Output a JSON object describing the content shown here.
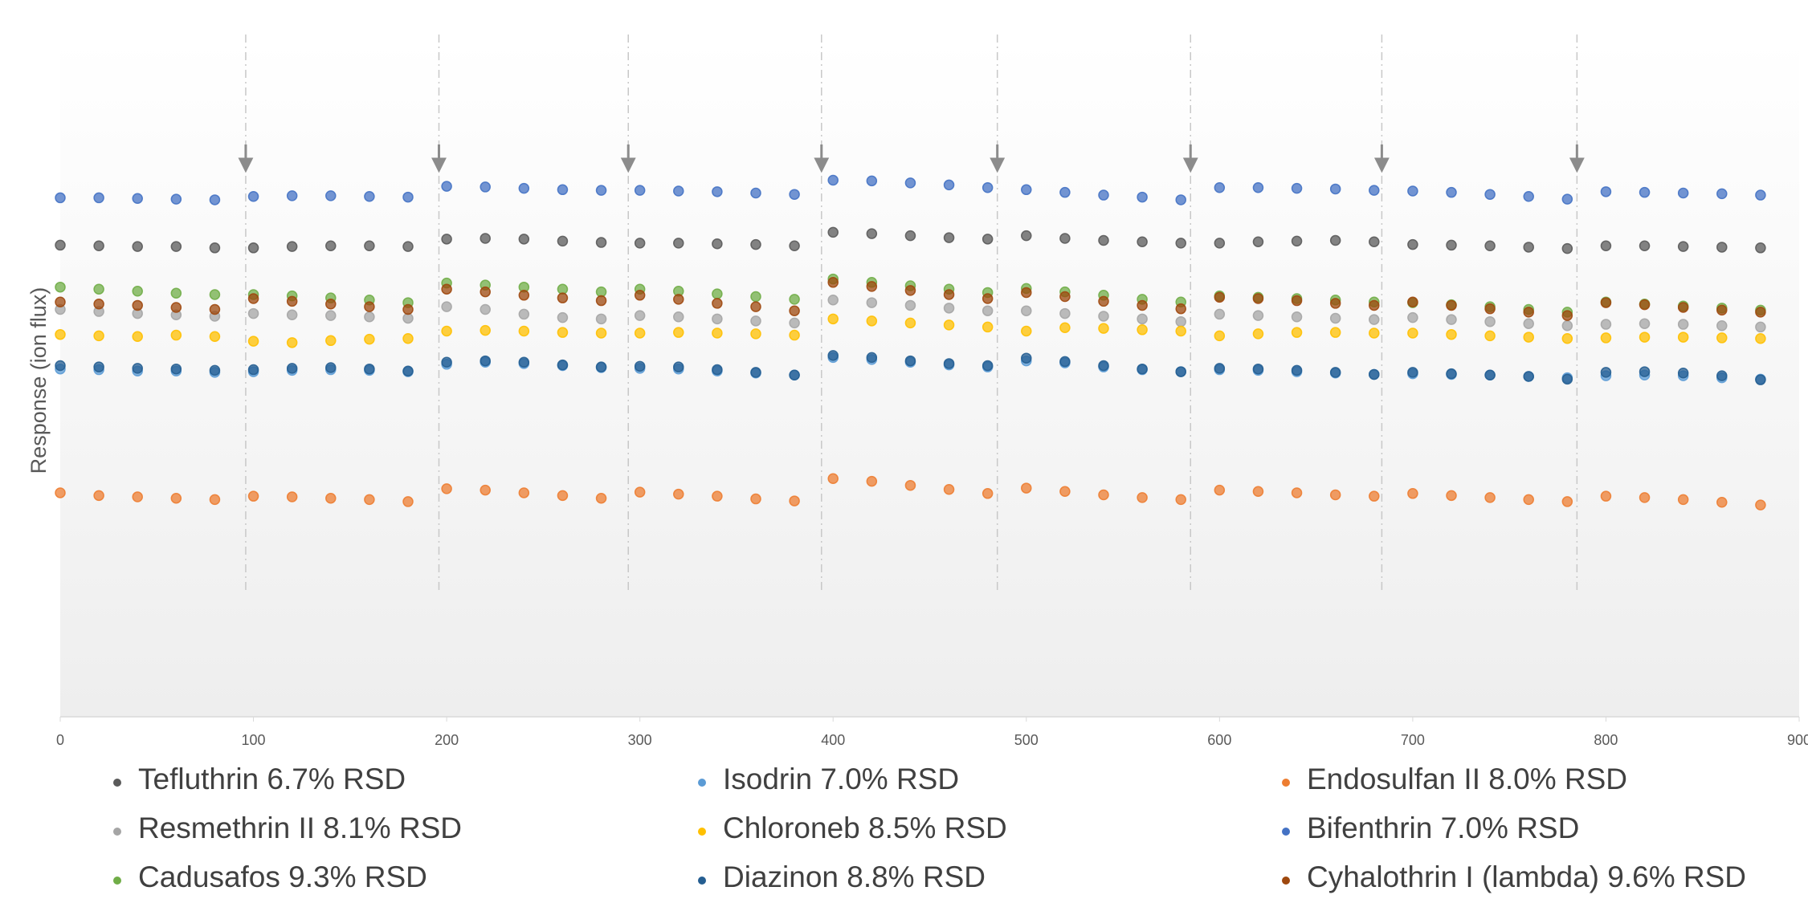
{
  "chart_data": {
    "type": "scatter",
    "y_label": "Response  (ion flux)",
    "xlim": [
      0,
      900
    ],
    "xticks": [
      0,
      100,
      200,
      300,
      400,
      500,
      600,
      700,
      800,
      900
    ],
    "ylim": [
      0,
      100
    ],
    "markers": [
      96,
      196,
      294,
      394,
      485,
      585,
      684,
      785
    ],
    "x": [
      0,
      20,
      40,
      60,
      80,
      100,
      120,
      140,
      160,
      180,
      200,
      220,
      240,
      260,
      280,
      300,
      320,
      340,
      360,
      380,
      400,
      420,
      440,
      460,
      480,
      500,
      520,
      540,
      560,
      580,
      600,
      620,
      640,
      660,
      680,
      700,
      720,
      740,
      760,
      780,
      800,
      820,
      840,
      860,
      880
    ],
    "series": [
      {
        "name": "Tefluthrin 6.7% RSD",
        "color": "#5a5a5a",
        "values": [
          69.7,
          69.6,
          69.5,
          69.5,
          69.3,
          69.3,
          69.5,
          69.6,
          69.6,
          69.5,
          70.6,
          70.7,
          70.6,
          70.3,
          70.1,
          70.0,
          70.0,
          69.9,
          69.8,
          69.6,
          71.6,
          71.4,
          71.1,
          70.8,
          70.6,
          71.1,
          70.7,
          70.4,
          70.2,
          70.0,
          70.0,
          70.2,
          70.3,
          70.4,
          70.2,
          69.8,
          69.7,
          69.6,
          69.4,
          69.2,
          69.6,
          69.6,
          69.5,
          69.4,
          69.3
        ]
      },
      {
        "name": "Resmethrin II 8.1% RSD",
        "color": "#a5a5a5",
        "values": [
          60.2,
          59.9,
          59.6,
          59.4,
          59.2,
          59.6,
          59.4,
          59.3,
          59.1,
          58.9,
          60.6,
          60.2,
          59.5,
          59.0,
          58.8,
          59.3,
          59.1,
          58.8,
          58.5,
          58.2,
          61.6,
          61.2,
          60.8,
          60.4,
          60.0,
          60.0,
          59.6,
          59.2,
          58.8,
          58.4,
          59.5,
          59.3,
          59.1,
          58.9,
          58.7,
          59.0,
          58.7,
          58.4,
          58.1,
          57.8,
          58.0,
          58.1,
          58.0,
          57.8,
          57.6
        ]
      },
      {
        "name": "Cadusafos 9.3% RSD",
        "color": "#70ad47",
        "values": [
          63.5,
          63.2,
          62.9,
          62.6,
          62.4,
          62.4,
          62.2,
          61.9,
          61.6,
          61.2,
          64.1,
          63.8,
          63.5,
          63.2,
          62.8,
          63.2,
          62.9,
          62.5,
          62.1,
          61.7,
          64.7,
          64.2,
          63.7,
          63.2,
          62.7,
          63.3,
          62.8,
          62.3,
          61.7,
          61.3,
          62.2,
          62.0,
          61.8,
          61.6,
          61.3,
          61.2,
          60.9,
          60.6,
          60.2,
          59.8,
          61.3,
          61.0,
          60.7,
          60.4,
          60.1
        ]
      },
      {
        "name": "Isodrin 7.0% RSD",
        "color": "#5b9bd5",
        "values": [
          51.4,
          51.3,
          51.1,
          51.1,
          50.9,
          51.0,
          51.2,
          51.3,
          51.2,
          51.0,
          52.1,
          52.4,
          52.2,
          51.9,
          51.6,
          51.5,
          51.4,
          51.1,
          50.8,
          50.5,
          53.1,
          52.8,
          52.4,
          52.0,
          51.7,
          52.6,
          52.3,
          51.7,
          51.3,
          51.0,
          51.3,
          51.2,
          51.0,
          50.8,
          50.6,
          50.7,
          50.6,
          50.5,
          50.3,
          50.1,
          50.4,
          50.5,
          50.4,
          50.1,
          49.9
        ]
      },
      {
        "name": "Chloroneb 8.5% RSD",
        "color": "#ffc000",
        "values": [
          56.5,
          56.3,
          56.2,
          56.4,
          56.2,
          55.5,
          55.3,
          55.6,
          55.8,
          55.9,
          57.0,
          57.1,
          57.0,
          56.8,
          56.7,
          56.7,
          56.8,
          56.7,
          56.6,
          56.4,
          58.8,
          58.5,
          58.2,
          57.9,
          57.6,
          57.0,
          57.5,
          57.4,
          57.2,
          57.0,
          56.3,
          56.6,
          56.8,
          56.8,
          56.7,
          56.7,
          56.5,
          56.3,
          56.1,
          55.9,
          56.0,
          56.1,
          56.1,
          56.0,
          55.9
        ]
      },
      {
        "name": "Diazinon 8.8% RSD",
        "color": "#255e91",
        "values": [
          51.9,
          51.7,
          51.5,
          51.4,
          51.2,
          51.3,
          51.5,
          51.6,
          51.4,
          51.1,
          52.4,
          52.6,
          52.4,
          52.0,
          51.7,
          51.8,
          51.7,
          51.3,
          50.9,
          50.5,
          53.4,
          53.1,
          52.6,
          52.2,
          51.9,
          53.0,
          52.5,
          51.9,
          51.4,
          51.0,
          51.5,
          51.4,
          51.2,
          50.9,
          50.6,
          50.9,
          50.7,
          50.5,
          50.3,
          49.9,
          50.9,
          51.0,
          50.8,
          50.4,
          49.8
        ]
      },
      {
        "name": "Endosulfan II 8.0% RSD",
        "color": "#ed7d31",
        "values": [
          33.1,
          32.7,
          32.5,
          32.3,
          32.1,
          32.6,
          32.5,
          32.3,
          32.1,
          31.8,
          33.7,
          33.5,
          33.1,
          32.7,
          32.3,
          33.2,
          32.9,
          32.6,
          32.2,
          31.9,
          35.2,
          34.8,
          34.2,
          33.6,
          33.0,
          33.8,
          33.3,
          32.8,
          32.4,
          32.1,
          33.5,
          33.3,
          33.1,
          32.8,
          32.6,
          33.0,
          32.7,
          32.4,
          32.1,
          31.8,
          32.6,
          32.4,
          32.1,
          31.7,
          31.3
        ]
      },
      {
        "name": "Bifenthrin 7.0% RSD",
        "color": "#4472c4",
        "values": [
          76.7,
          76.7,
          76.6,
          76.5,
          76.4,
          76.9,
          77.0,
          77.0,
          76.9,
          76.8,
          78.4,
          78.3,
          78.1,
          77.9,
          77.8,
          77.8,
          77.7,
          77.6,
          77.4,
          77.2,
          79.3,
          79.2,
          78.9,
          78.6,
          78.2,
          77.9,
          77.5,
          77.1,
          76.8,
          76.4,
          78.2,
          78.2,
          78.1,
          78.0,
          77.8,
          77.7,
          77.5,
          77.2,
          76.9,
          76.5,
          77.6,
          77.5,
          77.4,
          77.3,
          77.1
        ]
      },
      {
        "name": "Cyhalothrin I (lambda) 9.6% RSD",
        "color": "#9e480e",
        "values": [
          61.3,
          61.0,
          60.8,
          60.5,
          60.2,
          61.8,
          61.4,
          61.0,
          60.6,
          60.2,
          63.2,
          62.8,
          62.3,
          61.9,
          61.5,
          62.3,
          61.7,
          61.1,
          60.6,
          60.0,
          64.2,
          63.6,
          63.0,
          62.4,
          61.8,
          62.7,
          62.1,
          61.4,
          60.8,
          60.3,
          62.0,
          61.8,
          61.5,
          61.1,
          60.8,
          61.3,
          60.8,
          60.3,
          59.8,
          59.3,
          61.2,
          60.9,
          60.5,
          60.1,
          59.8
        ]
      }
    ]
  }
}
